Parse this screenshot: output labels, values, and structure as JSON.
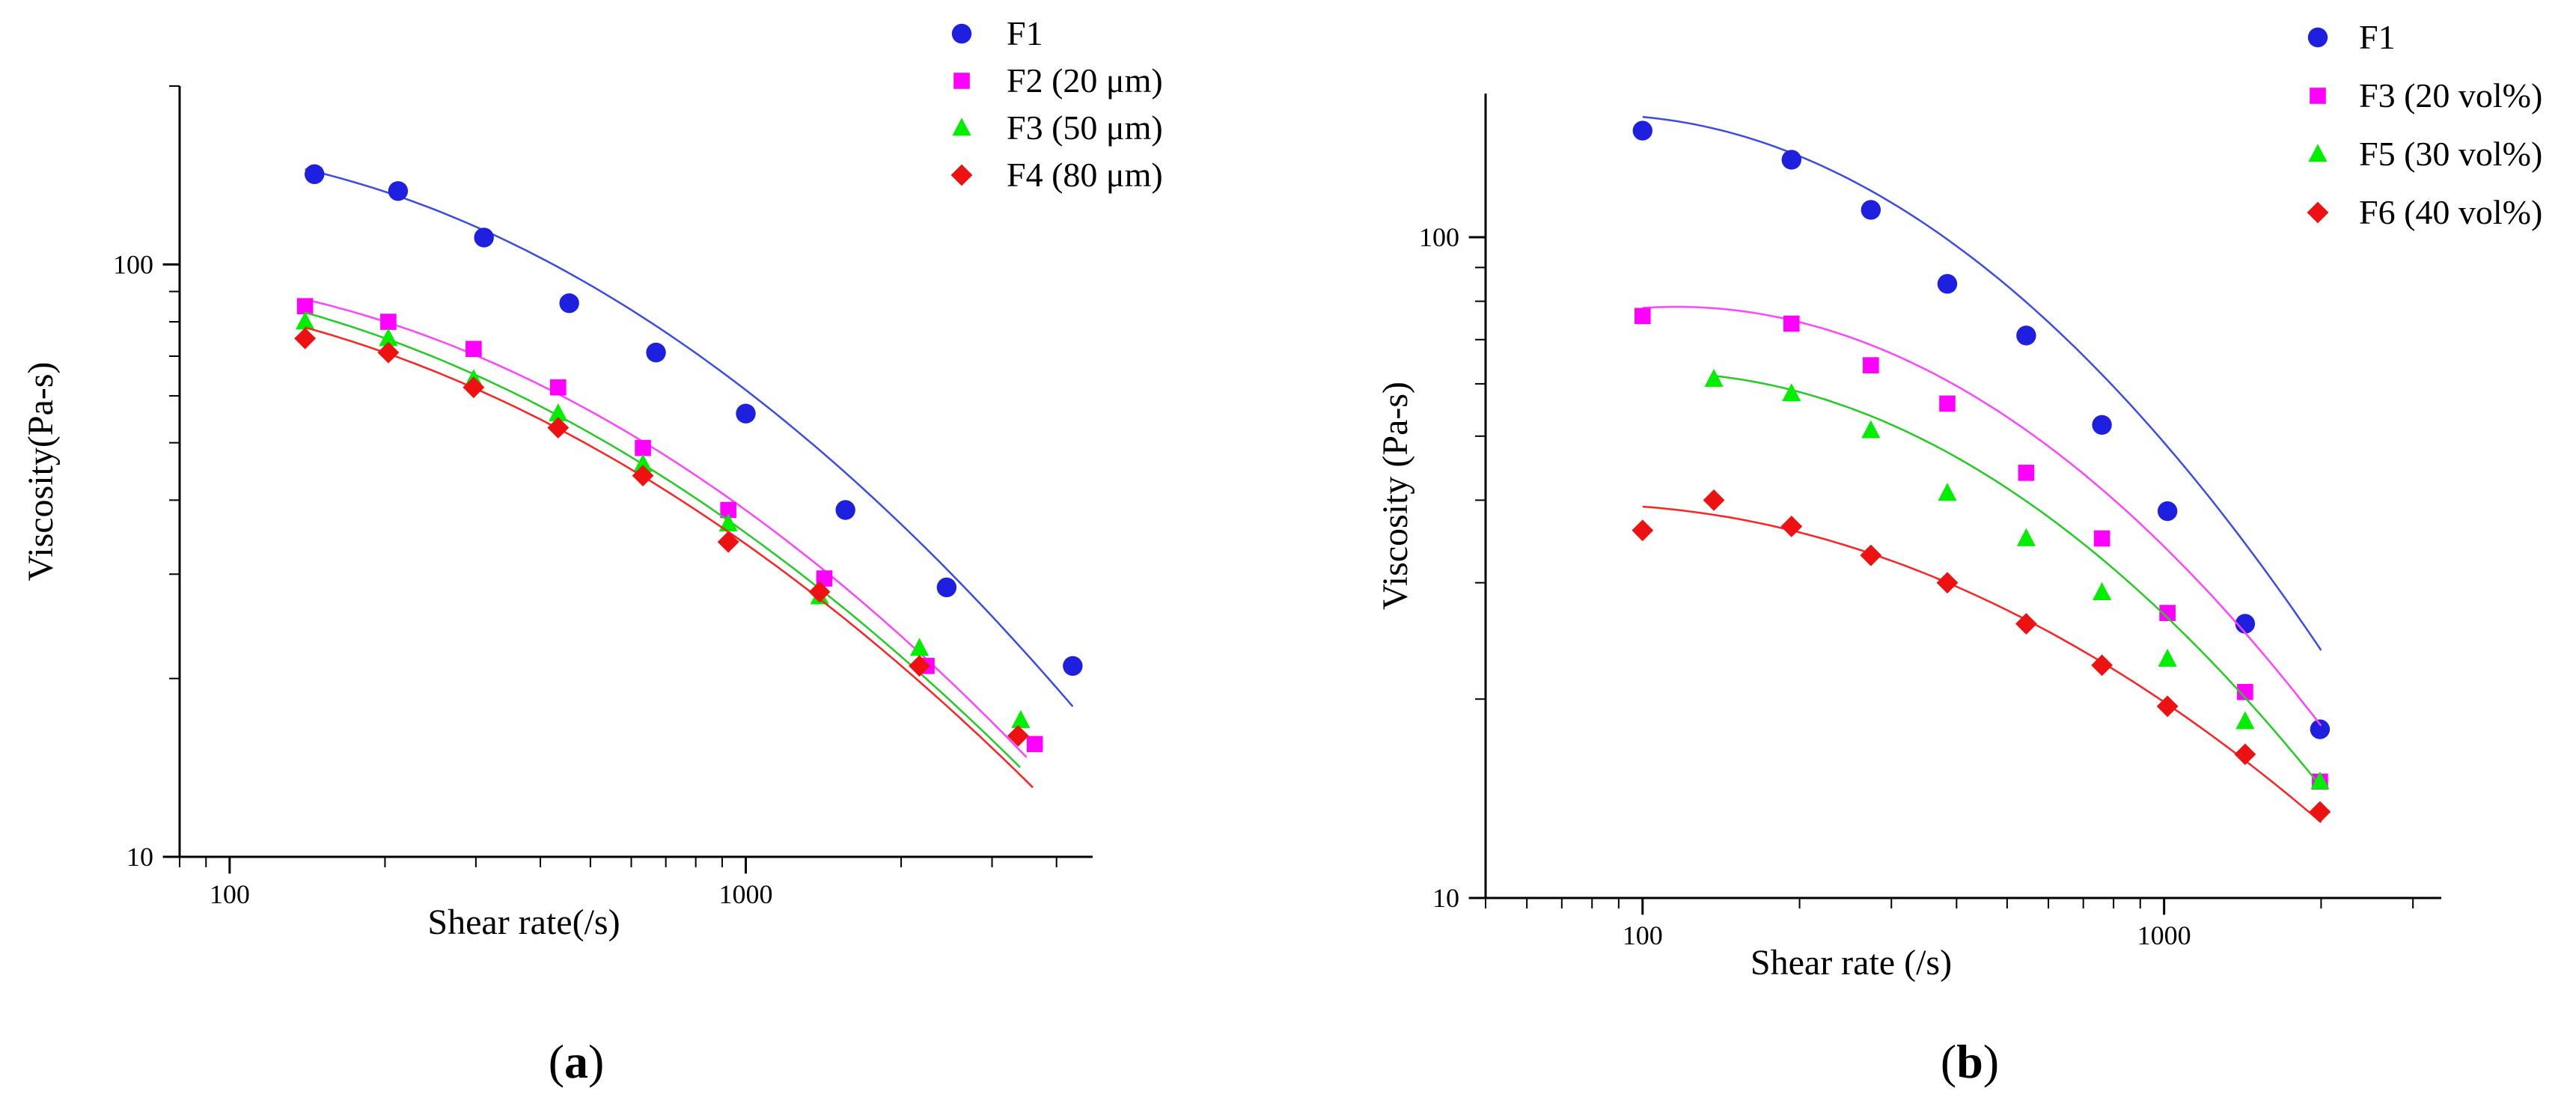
{
  "chart_data": [
    {
      "type": "scatter",
      "panel": "(a)",
      "panel_letter": "a",
      "xlabel": "Shear rate(/s)",
      "ylabel": "Viscosity(Pa-s)",
      "xscale": "log",
      "yscale": "log",
      "xlim": [
        80,
        4700
      ],
      "ylim": [
        10,
        200
      ],
      "xticks": [
        100,
        1000
      ],
      "xtick_labels": [
        "100",
        "1000"
      ],
      "yticks": [
        10,
        100
      ],
      "ytick_labels": [
        "10",
        "100"
      ],
      "legend_position": "top-right",
      "series": [
        {
          "name": "F1",
          "marker": "circle",
          "color": "#1f1fe0",
          "line_color": "#3a4be8",
          "x": [
            146,
            212,
            311,
            455,
            670,
            1000,
            1560,
            2450,
            4300
          ],
          "y": [
            142,
            133,
            111,
            86,
            71,
            56,
            38.5,
            28.5,
            21
          ],
          "fit": [
            [
              140,
              145
            ],
            [
              300,
              115
            ],
            [
              600,
              84
            ],
            [
              1000,
              62
            ],
            [
              2000,
              36
            ],
            [
              4300,
              18
            ]
          ]
        },
        {
          "name": "F2 (20 μm)",
          "marker": "square",
          "color": "#ff00ff",
          "line_color": "#ff44ff",
          "x": [
            140,
            203,
            297,
            433,
            632,
            925,
            1420,
            2240,
            3630
          ],
          "y": [
            85,
            80,
            72,
            62,
            49,
            38.5,
            29.5,
            21,
            15.5
          ],
          "fit": [
            [
              140,
              86
            ],
            [
              300,
              72
            ],
            [
              600,
              52
            ],
            [
              1000,
              38
            ],
            [
              2000,
              23
            ],
            [
              3500,
              15
            ]
          ]
        },
        {
          "name": "F3 (50 μm)",
          "marker": "triangle",
          "color": "#00ee00",
          "line_color": "#22cc22",
          "x": [
            140,
            203,
            297,
            433,
            632,
            925,
            1390,
            2170,
            3410
          ],
          "y": [
            80,
            75,
            64,
            56,
            46,
            36.5,
            27.5,
            22.5,
            17
          ],
          "fit": [
            [
              140,
              82
            ],
            [
              300,
              66
            ],
            [
              600,
              48
            ],
            [
              1000,
              35
            ],
            [
              2000,
              21
            ],
            [
              3400,
              14.5
            ]
          ]
        },
        {
          "name": "F4 (80 μm)",
          "marker": "diamond",
          "color": "#ee1111",
          "line_color": "#ff2222",
          "x": [
            140,
            203,
            297,
            433,
            632,
            925,
            1390,
            2170,
            3370
          ],
          "y": [
            75,
            71,
            62,
            53,
            44,
            34,
            28,
            21,
            16
          ],
          "fit": [
            [
              140,
              77
            ],
            [
              300,
              63
            ],
            [
              600,
              46
            ],
            [
              1000,
              33.5
            ],
            [
              2000,
              20
            ],
            [
              3600,
              13.5
            ]
          ]
        }
      ]
    },
    {
      "type": "scatter",
      "panel": "(b)",
      "panel_letter": "b",
      "xlabel": "Shear rate (/s)",
      "ylabel": "Viscosity (Pa-s)",
      "xscale": "log",
      "yscale": "log",
      "xlim": [
        50,
        3400
      ],
      "ylim": [
        10,
        165
      ],
      "xticks": [
        100,
        1000
      ],
      "xtick_labels": [
        "100",
        "1000"
      ],
      "yticks": [
        10,
        100
      ],
      "ytick_labels": [
        "10",
        "100"
      ],
      "legend_position": "top-right",
      "series": [
        {
          "name": "F1",
          "marker": "circle",
          "color": "#1f1fe0",
          "line_color": "#3a4be8",
          "x": [
            100,
            193,
            274,
            384,
            544,
            760,
            1015,
            1430,
            1990
          ],
          "y": [
            145,
            131,
            110,
            85,
            71,
            52,
            38.5,
            26,
            18
          ],
          "fit": [
            [
              100,
              152
            ],
            [
              200,
              132
            ],
            [
              400,
              98
            ],
            [
              800,
              60
            ],
            [
              1200,
              40
            ],
            [
              2000,
              24
            ]
          ]
        },
        {
          "name": "F3 (20 vol%)",
          "marker": "square",
          "color": "#ff00ff",
          "line_color": "#ff44ff",
          "x": [
            100,
            193,
            274,
            384,
            544,
            760,
            1015,
            1430,
            1990
          ],
          "y": [
            76,
            74,
            64,
            56,
            44,
            35,
            27,
            20.5,
            15
          ],
          "fit": [
            [
              100,
              80
            ],
            [
              200,
              72
            ],
            [
              400,
              58
            ],
            [
              800,
              41
            ],
            [
              1200,
              31
            ],
            [
              2000,
              17.5
            ]
          ]
        },
        {
          "name": "F5 (30 vol%)",
          "marker": "triangle",
          "color": "#00ee00",
          "line_color": "#22cc22",
          "x": [
            137,
            193,
            274,
            384,
            544,
            760,
            1015,
            1430,
            1990
          ],
          "y": [
            61,
            58,
            51,
            41,
            35,
            29,
            23,
            18.5,
            15
          ],
          "fit": [
            [
              137,
              62
            ],
            [
              250,
              55
            ],
            [
              500,
              41
            ],
            [
              800,
              31.5
            ],
            [
              1200,
              24
            ],
            [
              2000,
              14.5
            ]
          ]
        },
        {
          "name": "F6 (40 vol%)",
          "marker": "diamond",
          "color": "#ee1111",
          "line_color": "#ff2222",
          "x": [
            100,
            137,
            193,
            274,
            384,
            544,
            760,
            1015,
            1430,
            1990
          ],
          "y": [
            36,
            40,
            36.5,
            33,
            30,
            26,
            22.5,
            19.5,
            16.5,
            13.5
          ],
          "fit": [
            [
              100,
              39
            ],
            [
              200,
              36
            ],
            [
              400,
              29.5
            ],
            [
              700,
              23.5
            ],
            [
              1200,
              18
            ],
            [
              2000,
              13
            ]
          ]
        }
      ]
    }
  ]
}
